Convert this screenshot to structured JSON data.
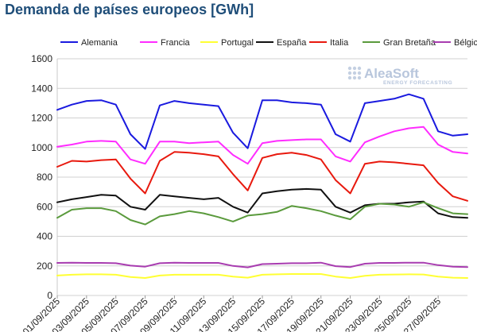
{
  "chart_data": {
    "type": "line",
    "title": "Demanda de países europeos [GWh]",
    "xlabel": "",
    "ylabel": "",
    "ylim": [
      0,
      1600
    ],
    "yticks": [
      0,
      200,
      400,
      600,
      800,
      1000,
      1200,
      1400,
      1600
    ],
    "grid": true,
    "legend_position": "top",
    "watermark": {
      "main": "AleaSoft",
      "sub": "ENERGY FORECASTING"
    },
    "x": [
      "01/09/2025",
      "02/09/2025",
      "03/09/2025",
      "04/09/2025",
      "05/09/2025",
      "06/09/2025",
      "07/09/2025",
      "08/09/2025",
      "09/09/2025",
      "10/09/2025",
      "11/09/2025",
      "12/09/2025",
      "13/09/2025",
      "14/09/2025",
      "15/09/2025",
      "16/09/2025",
      "17/09/2025",
      "18/09/2025",
      "19/09/2025",
      "20/09/2025",
      "21/09/2025",
      "22/09/2025",
      "23/09/2025",
      "24/09/2025",
      "25/09/2025",
      "26/09/2025",
      "27/09/2025",
      "28/09/2025",
      "29/09/2025"
    ],
    "xtick_labels": [
      "01/09/2025",
      "03/09/2025",
      "05/09/2025",
      "07/09/2025",
      "09/09/2025",
      "11/09/2025",
      "13/09/2025",
      "15/09/2025",
      "17/09/2025",
      "19/09/2025",
      "21/09/2025",
      "23/09/2025",
      "25/09/2025",
      "27/09/2025"
    ],
    "series": [
      {
        "name": "Alemania",
        "color": "#1a1adf",
        "values": [
          1255,
          1290,
          1315,
          1320,
          1290,
          1090,
          990,
          1285,
          1315,
          1300,
          1290,
          1280,
          1100,
          995,
          1320,
          1320,
          1305,
          1300,
          1290,
          1090,
          1040,
          1300,
          1315,
          1330,
          1360,
          1330,
          1110,
          1080,
          1090
        ]
      },
      {
        "name": "Francia",
        "color": "#ff2cff",
        "values": [
          1005,
          1020,
          1040,
          1045,
          1040,
          920,
          890,
          1040,
          1040,
          1030,
          1035,
          1040,
          950,
          890,
          1030,
          1045,
          1050,
          1055,
          1055,
          940,
          905,
          1035,
          1075,
          1110,
          1130,
          1140,
          1020,
          970,
          960
        ]
      },
      {
        "name": "Portugal",
        "color": "#ffff33",
        "values": [
          135,
          140,
          143,
          143,
          140,
          125,
          118,
          135,
          140,
          140,
          140,
          140,
          128,
          120,
          140,
          143,
          145,
          145,
          145,
          128,
          118,
          133,
          140,
          142,
          143,
          142,
          128,
          120,
          118
        ]
      },
      {
        "name": "España",
        "color": "#111111",
        "values": [
          630,
          650,
          665,
          680,
          675,
          600,
          580,
          680,
          670,
          660,
          650,
          660,
          600,
          560,
          690,
          705,
          715,
          720,
          715,
          600,
          560,
          610,
          620,
          620,
          630,
          635,
          555,
          530,
          525
        ]
      },
      {
        "name": "Italia",
        "color": "#e8190e",
        "values": [
          870,
          910,
          905,
          915,
          920,
          790,
          690,
          910,
          970,
          965,
          955,
          940,
          820,
          710,
          930,
          955,
          965,
          950,
          920,
          780,
          690,
          890,
          905,
          900,
          890,
          880,
          760,
          670,
          640
        ]
      },
      {
        "name": "Gran Bretaña",
        "color": "#5a9a3c",
        "values": [
          525,
          580,
          590,
          590,
          570,
          510,
          480,
          535,
          550,
          570,
          555,
          530,
          500,
          540,
          550,
          565,
          605,
          590,
          570,
          540,
          515,
          600,
          620,
          615,
          600,
          630,
          590,
          555,
          550
        ]
      },
      {
        "name": "Bélgica",
        "color": "#a83cb0",
        "values": [
          220,
          222,
          220,
          220,
          218,
          202,
          195,
          218,
          222,
          220,
          220,
          220,
          200,
          190,
          212,
          215,
          218,
          218,
          222,
          198,
          192,
          215,
          220,
          220,
          222,
          222,
          205,
          195,
          192
        ]
      }
    ]
  }
}
